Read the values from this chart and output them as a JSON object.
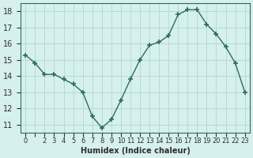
{
  "x": [
    0,
    1,
    2,
    3,
    4,
    5,
    6,
    7,
    8,
    9,
    10,
    11,
    12,
    13,
    14,
    15,
    16,
    17,
    18,
    19,
    20,
    21,
    22,
    23
  ],
  "y": [
    15.3,
    14.8,
    14.1,
    14.1,
    13.8,
    13.5,
    13.0,
    11.5,
    10.8,
    11.3,
    12.5,
    13.8,
    15.0,
    15.9,
    16.1,
    16.5,
    17.8,
    18.1,
    18.1,
    17.2,
    16.6,
    15.8,
    14.8,
    13.0
  ],
  "xlabel": "Humidex (Indice chaleur)",
  "xlim": [
    -0.5,
    23.5
  ],
  "ylim": [
    10.5,
    18.5
  ],
  "yticks": [
    11,
    12,
    13,
    14,
    15,
    16,
    17,
    18
  ],
  "line_color": "#2e6b5e",
  "bg_color": "#d6f0ed",
  "grid_color": "#b0d8d4",
  "marker": "+",
  "marker_size": 5
}
